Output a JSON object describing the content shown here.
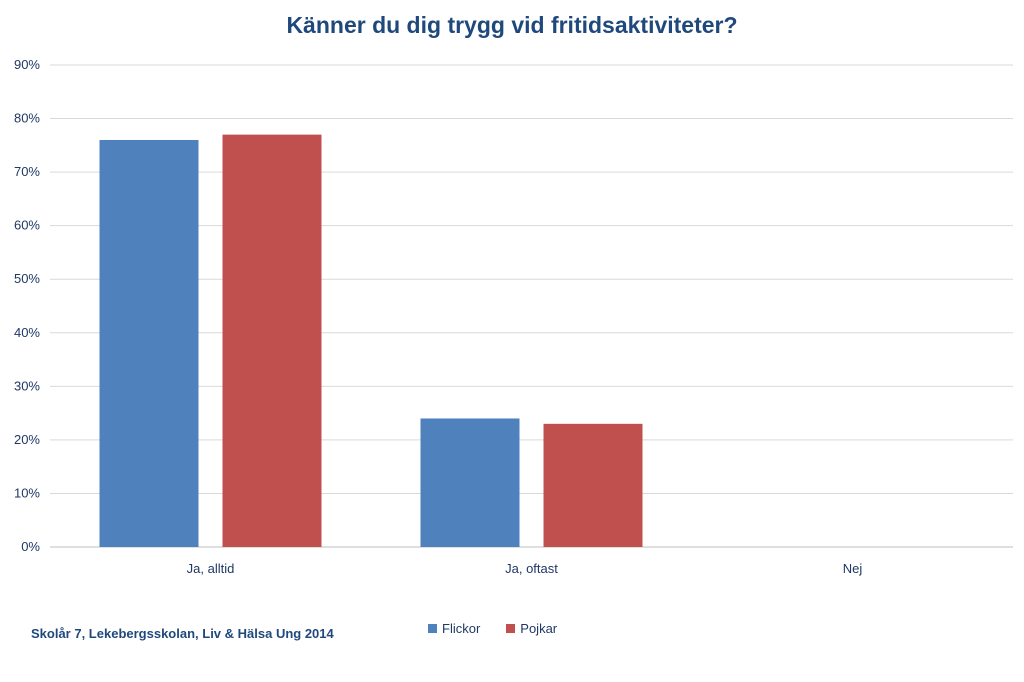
{
  "chart_data": {
    "type": "bar",
    "title": "Känner du dig trygg vid fritidsaktiviteter?",
    "categories": [
      "Ja, alltid",
      "Ja, oftast",
      "Nej"
    ],
    "series": [
      {
        "name": "Flickor",
        "values": [
          76,
          24,
          0
        ],
        "color": "#4f81bd"
      },
      {
        "name": "Pojkar",
        "values": [
          77,
          23,
          0
        ],
        "color": "#c0504d"
      }
    ],
    "ylim": [
      0,
      90
    ],
    "yticks": [
      0,
      10,
      20,
      30,
      40,
      50,
      60,
      70,
      80,
      90
    ],
    "ytick_suffix": "%",
    "grid": true,
    "legend_position": "bottom"
  },
  "footer_note": "Skolår 7, Lekebergsskolan, Liv & Hälsa Ung 2014"
}
